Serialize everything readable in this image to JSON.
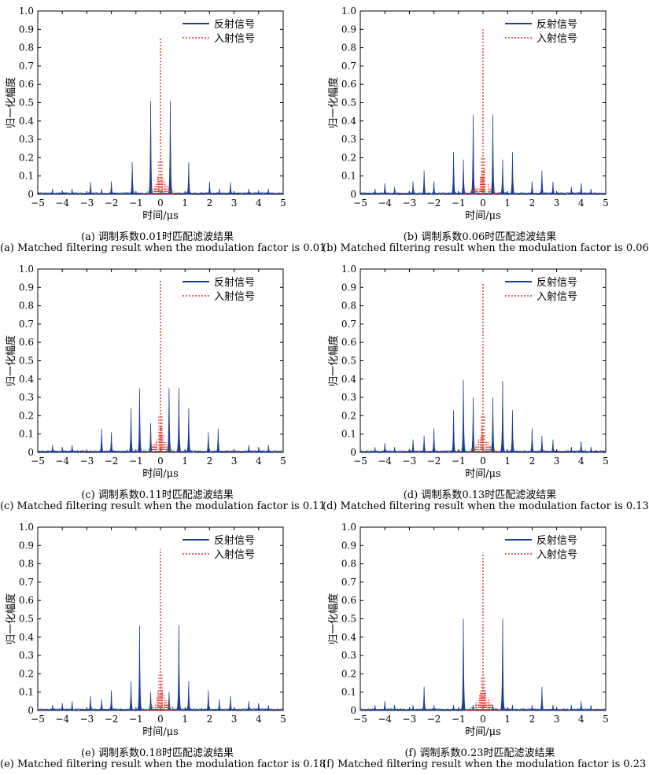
{
  "colors": {
    "reflected": "#1f3f96",
    "incident": "#e03228",
    "axis": "#000000"
  },
  "chart_data": [
    {
      "type": "line",
      "panel": "a",
      "caption_cn": "(a) 调制系数0.01时匹配滤波结果",
      "caption_en": "(a) Matched filtering result when the modulation factor is 0.01",
      "xlabel": "时间/μs",
      "ylabel": "归一化幅度",
      "xlim": [
        -5,
        5
      ],
      "ylim": [
        0,
        1
      ],
      "xticks": [
        "−5",
        "−4",
        "−3",
        "−2",
        "−1",
        "0",
        "1",
        "2",
        "3",
        "4",
        "5"
      ],
      "yticks": [
        "0",
        "0.1",
        "0.2",
        "0.3",
        "0.4",
        "0.5",
        "0.6",
        "0.7",
        "0.8",
        "0.9",
        "1.0"
      ],
      "legend": "top-right",
      "series": [
        {
          "name": "反射信号",
          "style": "solid",
          "role": "reflected",
          "peaks": [
            [
              -4.4,
              0.03
            ],
            [
              -4.0,
              0.02
            ],
            [
              -3.6,
              0.03
            ],
            [
              -2.85,
              0.065
            ],
            [
              -2.4,
              0.03
            ],
            [
              -2.0,
              0.07
            ],
            [
              -1.15,
              0.175
            ],
            [
              -0.4,
              0.51
            ],
            [
              0.4,
              0.51
            ],
            [
              1.15,
              0.175
            ],
            [
              2.0,
              0.07
            ],
            [
              2.4,
              0.03
            ],
            [
              2.85,
              0.065
            ],
            [
              3.6,
              0.03
            ],
            [
              4.0,
              0.02
            ],
            [
              4.4,
              0.03
            ]
          ]
        },
        {
          "name": "入射信号",
          "style": "dotted",
          "role": "incident",
          "peaks": [
            [
              0,
              0.85
            ]
          ],
          "center_spread": 0.18
        }
      ]
    },
    {
      "type": "line",
      "panel": "b",
      "caption_cn": "(b) 调制系数0.06时匹配滤波结果",
      "caption_en": "(b) Matched filtering result when the modulation factor is 0.06",
      "xlabel": "时间/μs",
      "ylabel": "归一化幅度",
      "xlim": [
        -5,
        5
      ],
      "ylim": [
        0,
        1
      ],
      "xticks": [
        "−5",
        "−4",
        "−3",
        "−2",
        "−1",
        "0",
        "1",
        "2",
        "3",
        "4",
        "5"
      ],
      "yticks": [
        "0",
        "0.1",
        "0.2",
        "0.3",
        "0.4",
        "0.5",
        "0.6",
        "0.7",
        "0.8",
        "0.9",
        "1.0"
      ],
      "legend": "top-right",
      "series": [
        {
          "name": "反射信号",
          "style": "solid",
          "role": "reflected",
          "peaks": [
            [
              -4.4,
              0.03
            ],
            [
              -4.0,
              0.06
            ],
            [
              -3.6,
              0.04
            ],
            [
              -2.85,
              0.07
            ],
            [
              -2.4,
              0.13
            ],
            [
              -2.0,
              0.07
            ],
            [
              -1.2,
              0.23
            ],
            [
              -0.8,
              0.19
            ],
            [
              -0.4,
              0.435
            ],
            [
              0.4,
              0.435
            ],
            [
              0.8,
              0.19
            ],
            [
              1.2,
              0.23
            ],
            [
              2.0,
              0.07
            ],
            [
              2.4,
              0.13
            ],
            [
              2.85,
              0.07
            ],
            [
              3.6,
              0.04
            ],
            [
              4.0,
              0.06
            ],
            [
              4.4,
              0.03
            ]
          ]
        },
        {
          "name": "入射信号",
          "style": "dotted",
          "role": "incident",
          "peaks": [
            [
              0,
              0.9
            ]
          ],
          "center_spread": 0.18
        }
      ]
    },
    {
      "type": "line",
      "panel": "c",
      "caption_cn": "(c) 调制系数0.11时匹配滤波结果",
      "caption_en": "(c) Matched filtering result when the modulation factor is 0.11",
      "xlabel": "时间/μs",
      "ylabel": "归一化幅度",
      "xlim": [
        -5,
        5
      ],
      "ylim": [
        0,
        1
      ],
      "xticks": [
        "−5",
        "−4",
        "−3",
        "−2",
        "−1",
        "0",
        "1",
        "2",
        "3",
        "4",
        "5"
      ],
      "yticks": [
        "0",
        "0.1",
        "0.2",
        "0.3",
        "0.4",
        "0.5",
        "0.6",
        "0.7",
        "0.8",
        "0.9",
        "1.0"
      ],
      "legend": "top-right",
      "series": [
        {
          "name": "反射信号",
          "style": "solid",
          "role": "reflected",
          "peaks": [
            [
              -4.4,
              0.04
            ],
            [
              -4.0,
              0.03
            ],
            [
              -3.6,
              0.04
            ],
            [
              -2.4,
              0.13
            ],
            [
              -2.0,
              0.11
            ],
            [
              -1.2,
              0.24
            ],
            [
              -0.85,
              0.35
            ],
            [
              -0.4,
              0.16
            ],
            [
              0.35,
              0.35
            ],
            [
              0.75,
              0.35
            ],
            [
              1.15,
              0.24
            ],
            [
              1.95,
              0.11
            ],
            [
              2.35,
              0.13
            ],
            [
              3.6,
              0.04
            ],
            [
              4.0,
              0.03
            ],
            [
              4.4,
              0.04
            ]
          ]
        },
        {
          "name": "入射信号",
          "style": "dotted",
          "role": "incident",
          "peaks": [
            [
              0,
              0.94
            ]
          ],
          "center_spread": 0.18
        }
      ]
    },
    {
      "type": "line",
      "panel": "d",
      "caption_cn": "(d) 调制系数0.13时匹配滤波结果",
      "caption_en": "(d) Matched filtering result when the modulation factor is 0.13",
      "xlabel": "时间/μs",
      "ylabel": "归一化幅度",
      "xlim": [
        -5,
        5
      ],
      "ylim": [
        0,
        1
      ],
      "xticks": [
        "−5",
        "−4",
        "−3",
        "−2",
        "−1",
        "0",
        "1",
        "2",
        "3",
        "4",
        "5"
      ],
      "yticks": [
        "0",
        "0.1",
        "0.2",
        "0.3",
        "0.4",
        "0.5",
        "0.6",
        "0.7",
        "0.8",
        "0.9",
        "1.0"
      ],
      "legend": "top-right",
      "series": [
        {
          "name": "反射信号",
          "style": "solid",
          "role": "reflected",
          "peaks": [
            [
              -4.4,
              0.03
            ],
            [
              -4.0,
              0.05
            ],
            [
              -3.6,
              0.03
            ],
            [
              -2.85,
              0.07
            ],
            [
              -2.4,
              0.09
            ],
            [
              -2.0,
              0.13
            ],
            [
              -1.2,
              0.23
            ],
            [
              -0.8,
              0.395
            ],
            [
              -0.4,
              0.3
            ],
            [
              0.4,
              0.3
            ],
            [
              0.8,
              0.39
            ],
            [
              1.2,
              0.23
            ],
            [
              2.0,
              0.13
            ],
            [
              2.4,
              0.09
            ],
            [
              2.85,
              0.07
            ],
            [
              3.6,
              0.03
            ],
            [
              4.0,
              0.06
            ],
            [
              4.4,
              0.03
            ]
          ]
        },
        {
          "name": "入射信号",
          "style": "dotted",
          "role": "incident",
          "peaks": [
            [
              0,
              0.92
            ]
          ],
          "center_spread": 0.18
        }
      ]
    },
    {
      "type": "line",
      "panel": "e",
      "caption_cn": "(e) 调制系数0.18时匹配滤波结果",
      "caption_en": "(e) Matched filtering result when the modulation factor is 0.18",
      "xlabel": "时间/μs",
      "ylabel": "归一化幅度",
      "xlim": [
        -5,
        5
      ],
      "ylim": [
        0,
        1
      ],
      "xticks": [
        "−5",
        "−4",
        "−3",
        "−2",
        "−1",
        "0",
        "1",
        "2",
        "3",
        "4",
        "5"
      ],
      "yticks": [
        "0",
        "0.1",
        "0.2",
        "0.3",
        "0.4",
        "0.5",
        "0.6",
        "0.7",
        "0.8",
        "0.9",
        "1.0"
      ],
      "legend": "top-right",
      "series": [
        {
          "name": "反射信号",
          "style": "solid",
          "role": "reflected",
          "peaks": [
            [
              -4.4,
              0.03
            ],
            [
              -4.0,
              0.04
            ],
            [
              -3.6,
              0.05
            ],
            [
              -2.85,
              0.08
            ],
            [
              -2.4,
              0.06
            ],
            [
              -2.0,
              0.11
            ],
            [
              -1.2,
              0.16
            ],
            [
              -0.85,
              0.465
            ],
            [
              -0.4,
              0.1
            ],
            [
              0.35,
              0.1
            ],
            [
              0.75,
              0.465
            ],
            [
              1.15,
              0.16
            ],
            [
              1.95,
              0.11
            ],
            [
              2.4,
              0.06
            ],
            [
              2.85,
              0.08
            ],
            [
              3.6,
              0.05
            ],
            [
              4.0,
              0.04
            ],
            [
              4.4,
              0.03
            ]
          ]
        },
        {
          "name": "入射信号",
          "style": "dotted",
          "role": "incident",
          "peaks": [
            [
              0,
              0.88
            ]
          ],
          "center_spread": 0.18
        }
      ]
    },
    {
      "type": "line",
      "panel": "f",
      "caption_cn": "(f) 调制系数0.23时匹配滤波结果",
      "caption_en": "(f) Matched filtering result when the modulation factor is 0.23",
      "xlabel": "时间/μs",
      "ylabel": "归一化幅度",
      "xlim": [
        -5,
        5
      ],
      "ylim": [
        0,
        1
      ],
      "xticks": [
        "−5",
        "−4",
        "−3",
        "−2",
        "−1",
        "0",
        "1",
        "2",
        "3",
        "4",
        "5"
      ],
      "yticks": [
        "0",
        "0.1",
        "0.2",
        "0.3",
        "0.4",
        "0.5",
        "0.6",
        "0.7",
        "0.8",
        "0.9",
        "1.0"
      ],
      "legend": "top-right",
      "series": [
        {
          "name": "反射信号",
          "style": "solid",
          "role": "reflected",
          "peaks": [
            [
              -4.4,
              0.03
            ],
            [
              -4.0,
              0.05
            ],
            [
              -3.6,
              0.03
            ],
            [
              -2.85,
              0.03
            ],
            [
              -2.4,
              0.13
            ],
            [
              -2.0,
              0.03
            ],
            [
              -1.2,
              0.03
            ],
            [
              -0.8,
              0.5
            ],
            [
              -0.4,
              0.03
            ],
            [
              0.4,
              0.03
            ],
            [
              0.8,
              0.5
            ],
            [
              1.2,
              0.03
            ],
            [
              2.0,
              0.03
            ],
            [
              2.4,
              0.13
            ],
            [
              2.85,
              0.03
            ],
            [
              3.6,
              0.03
            ],
            [
              4.0,
              0.05
            ],
            [
              4.4,
              0.03
            ]
          ]
        },
        {
          "name": "入射信号",
          "style": "dotted",
          "role": "incident",
          "peaks": [
            [
              0,
              0.86
            ]
          ],
          "center_spread": 0.18
        }
      ]
    }
  ]
}
